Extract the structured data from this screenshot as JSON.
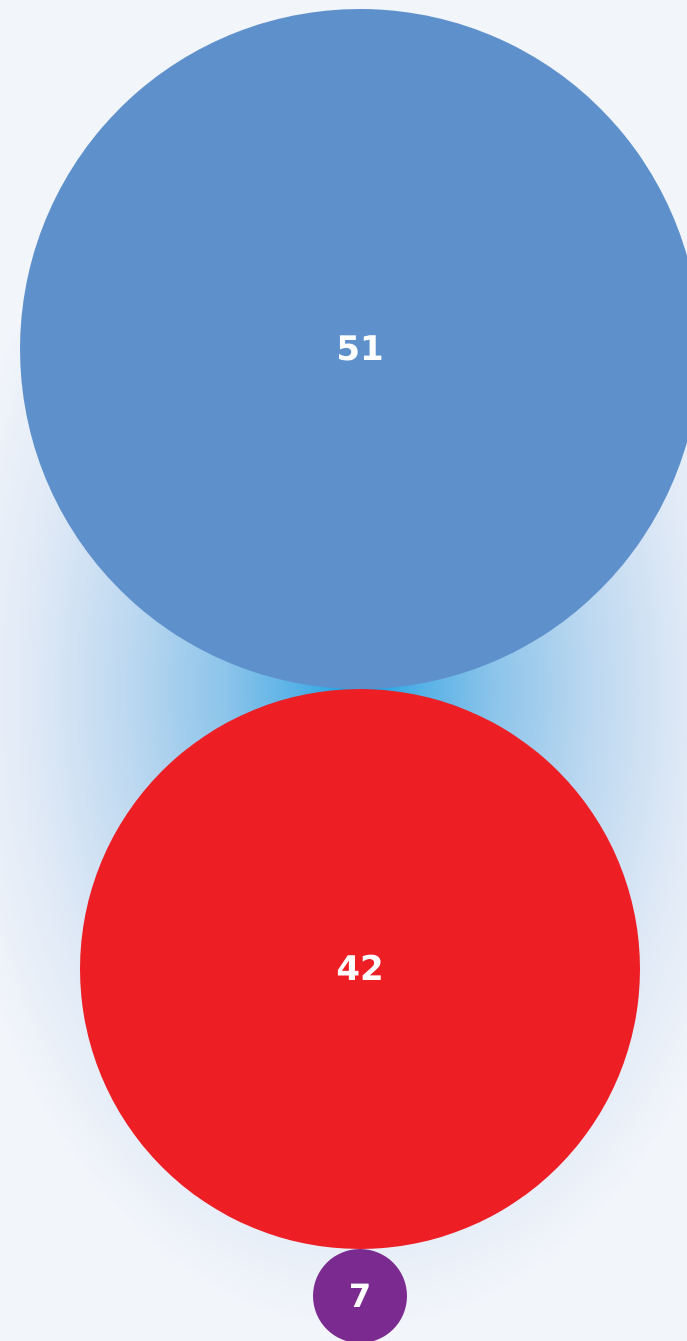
{
  "chart_data": {
    "type": "bubble",
    "title": "",
    "legend": "none",
    "bubbles": [
      {
        "value": 51,
        "label": "51",
        "color": "#5e91cc"
      },
      {
        "value": 42,
        "label": "42",
        "color": "#ed1e24"
      },
      {
        "value": 7,
        "label": "7",
        "color": "#7b2a90"
      }
    ]
  }
}
